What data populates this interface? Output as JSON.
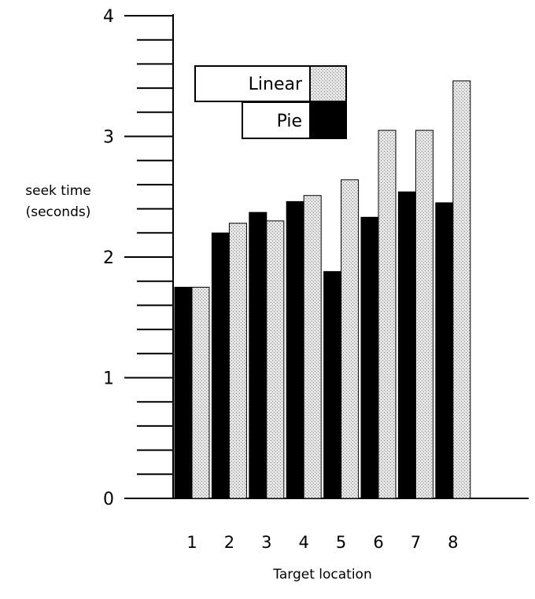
{
  "chart_data": {
    "type": "bar",
    "title": "",
    "xlabel": "Target location",
    "ylabel": [
      "seek time",
      "(seconds)"
    ],
    "categories": [
      "1",
      "2",
      "3",
      "4",
      "5",
      "6",
      "7",
      "8"
    ],
    "series": [
      {
        "name": "Pie",
        "color": "#000000",
        "pattern": "solid",
        "values": [
          1.75,
          2.2,
          2.37,
          2.46,
          1.88,
          2.33,
          2.54,
          2.45
        ]
      },
      {
        "name": "Linear",
        "color": "#c8c8c8",
        "pattern": "stipple",
        "values": [
          1.75,
          2.28,
          2.3,
          2.51,
          2.64,
          3.05,
          3.05,
          3.46
        ]
      }
    ],
    "ylim": [
      0,
      4
    ],
    "yticks": [
      "0",
      "1",
      "2",
      "3",
      "4"
    ],
    "minor_ticks_per_unit": 5,
    "legend_position": "top-center",
    "grid": false
  }
}
